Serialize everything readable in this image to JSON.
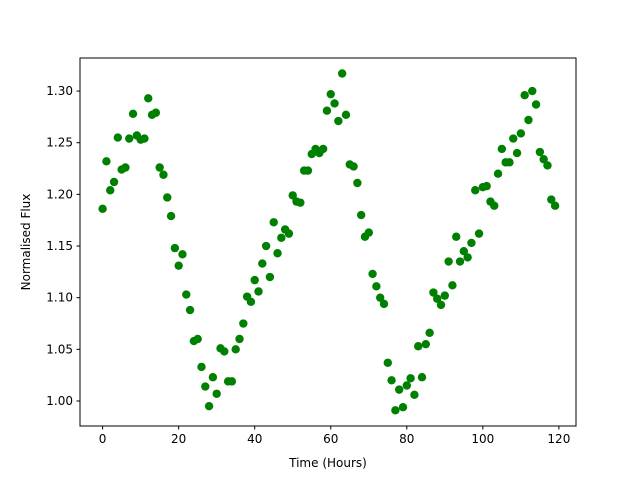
{
  "chart_data": {
    "type": "scatter",
    "x_label": "Time (Hours)",
    "y_label": "Normalised Flux",
    "color": "#008000",
    "grid": false,
    "xlim": [
      -5.95,
      124.5
    ],
    "ylim": [
      0.9758,
      1.332
    ],
    "xticks": [
      0,
      20,
      40,
      60,
      80,
      100,
      120
    ],
    "yticks": [
      {
        "value": 1.0,
        "label": "1.00"
      },
      1.05,
      {
        "value": 1.1,
        "label": "1.10"
      },
      1.15,
      {
        "value": 1.2,
        "label": "1.20"
      },
      1.25,
      {
        "value": 1.3,
        "label": "1.30"
      }
    ],
    "x": [
      0,
      1,
      2,
      3,
      4,
      5,
      6,
      7,
      8,
      9,
      10,
      11,
      12,
      13,
      14,
      15,
      16,
      17,
      18,
      19,
      20,
      21,
      22,
      23,
      24,
      25,
      26,
      27,
      28,
      29,
      30,
      31,
      32,
      33,
      34,
      35,
      36,
      37,
      38,
      39,
      40,
      41,
      42,
      43,
      44,
      45,
      46,
      47,
      48,
      49,
      50,
      51,
      52,
      53,
      54,
      55,
      56,
      57,
      58,
      59,
      60,
      61,
      62,
      63,
      64,
      65,
      66,
      67,
      68,
      69,
      70,
      71,
      72,
      73,
      74,
      75,
      76,
      77,
      78,
      79,
      80,
      81,
      82,
      83,
      84,
      85,
      86,
      87,
      88,
      89,
      90,
      91,
      92,
      93,
      94,
      95,
      96,
      97,
      98,
      99,
      100,
      101,
      102,
      103,
      104,
      105,
      106,
      107,
      108,
      109,
      110,
      111,
      112,
      113,
      114,
      115,
      116,
      117,
      118,
      119
    ],
    "values": [
      1.186,
      1.232,
      1.204,
      1.212,
      1.255,
      1.224,
      1.226,
      1.254,
      1.278,
      1.257,
      1.253,
      1.254,
      1.293,
      1.277,
      1.279,
      1.226,
      1.219,
      1.197,
      1.179,
      1.148,
      1.131,
      1.142,
      1.103,
      1.088,
      1.058,
      1.06,
      1.033,
      1.014,
      0.995,
      1.023,
      1.007,
      1.051,
      1.048,
      1.019,
      1.019,
      1.05,
      1.06,
      1.075,
      1.101,
      1.096,
      1.117,
      1.106,
      1.133,
      1.15,
      1.12,
      1.173,
      1.143,
      1.158,
      1.166,
      1.162,
      1.199,
      1.193,
      1.192,
      1.223,
      1.223,
      1.239,
      1.244,
      1.24,
      1.244,
      1.281,
      1.297,
      1.288,
      1.271,
      1.317,
      1.277,
      1.229,
      1.227,
      1.211,
      1.18,
      1.159,
      1.163,
      1.123,
      1.111,
      1.1,
      1.094,
      1.037,
      1.02,
      0.991,
      1.011,
      0.994,
      1.015,
      1.022,
      1.006,
      1.053,
      1.023,
      1.055,
      1.066,
      1.105,
      1.099,
      1.093,
      1.102,
      1.135,
      1.112,
      1.159,
      1.135,
      1.145,
      1.139,
      1.153,
      1.204,
      1.162,
      1.207,
      1.208,
      1.193,
      1.189,
      1.22,
      1.244,
      1.231,
      1.231,
      1.254,
      1.24,
      1.259,
      1.296,
      1.272,
      1.3,
      1.287,
      1.241,
      1.234,
      1.228,
      1.195,
      1.189
    ]
  }
}
